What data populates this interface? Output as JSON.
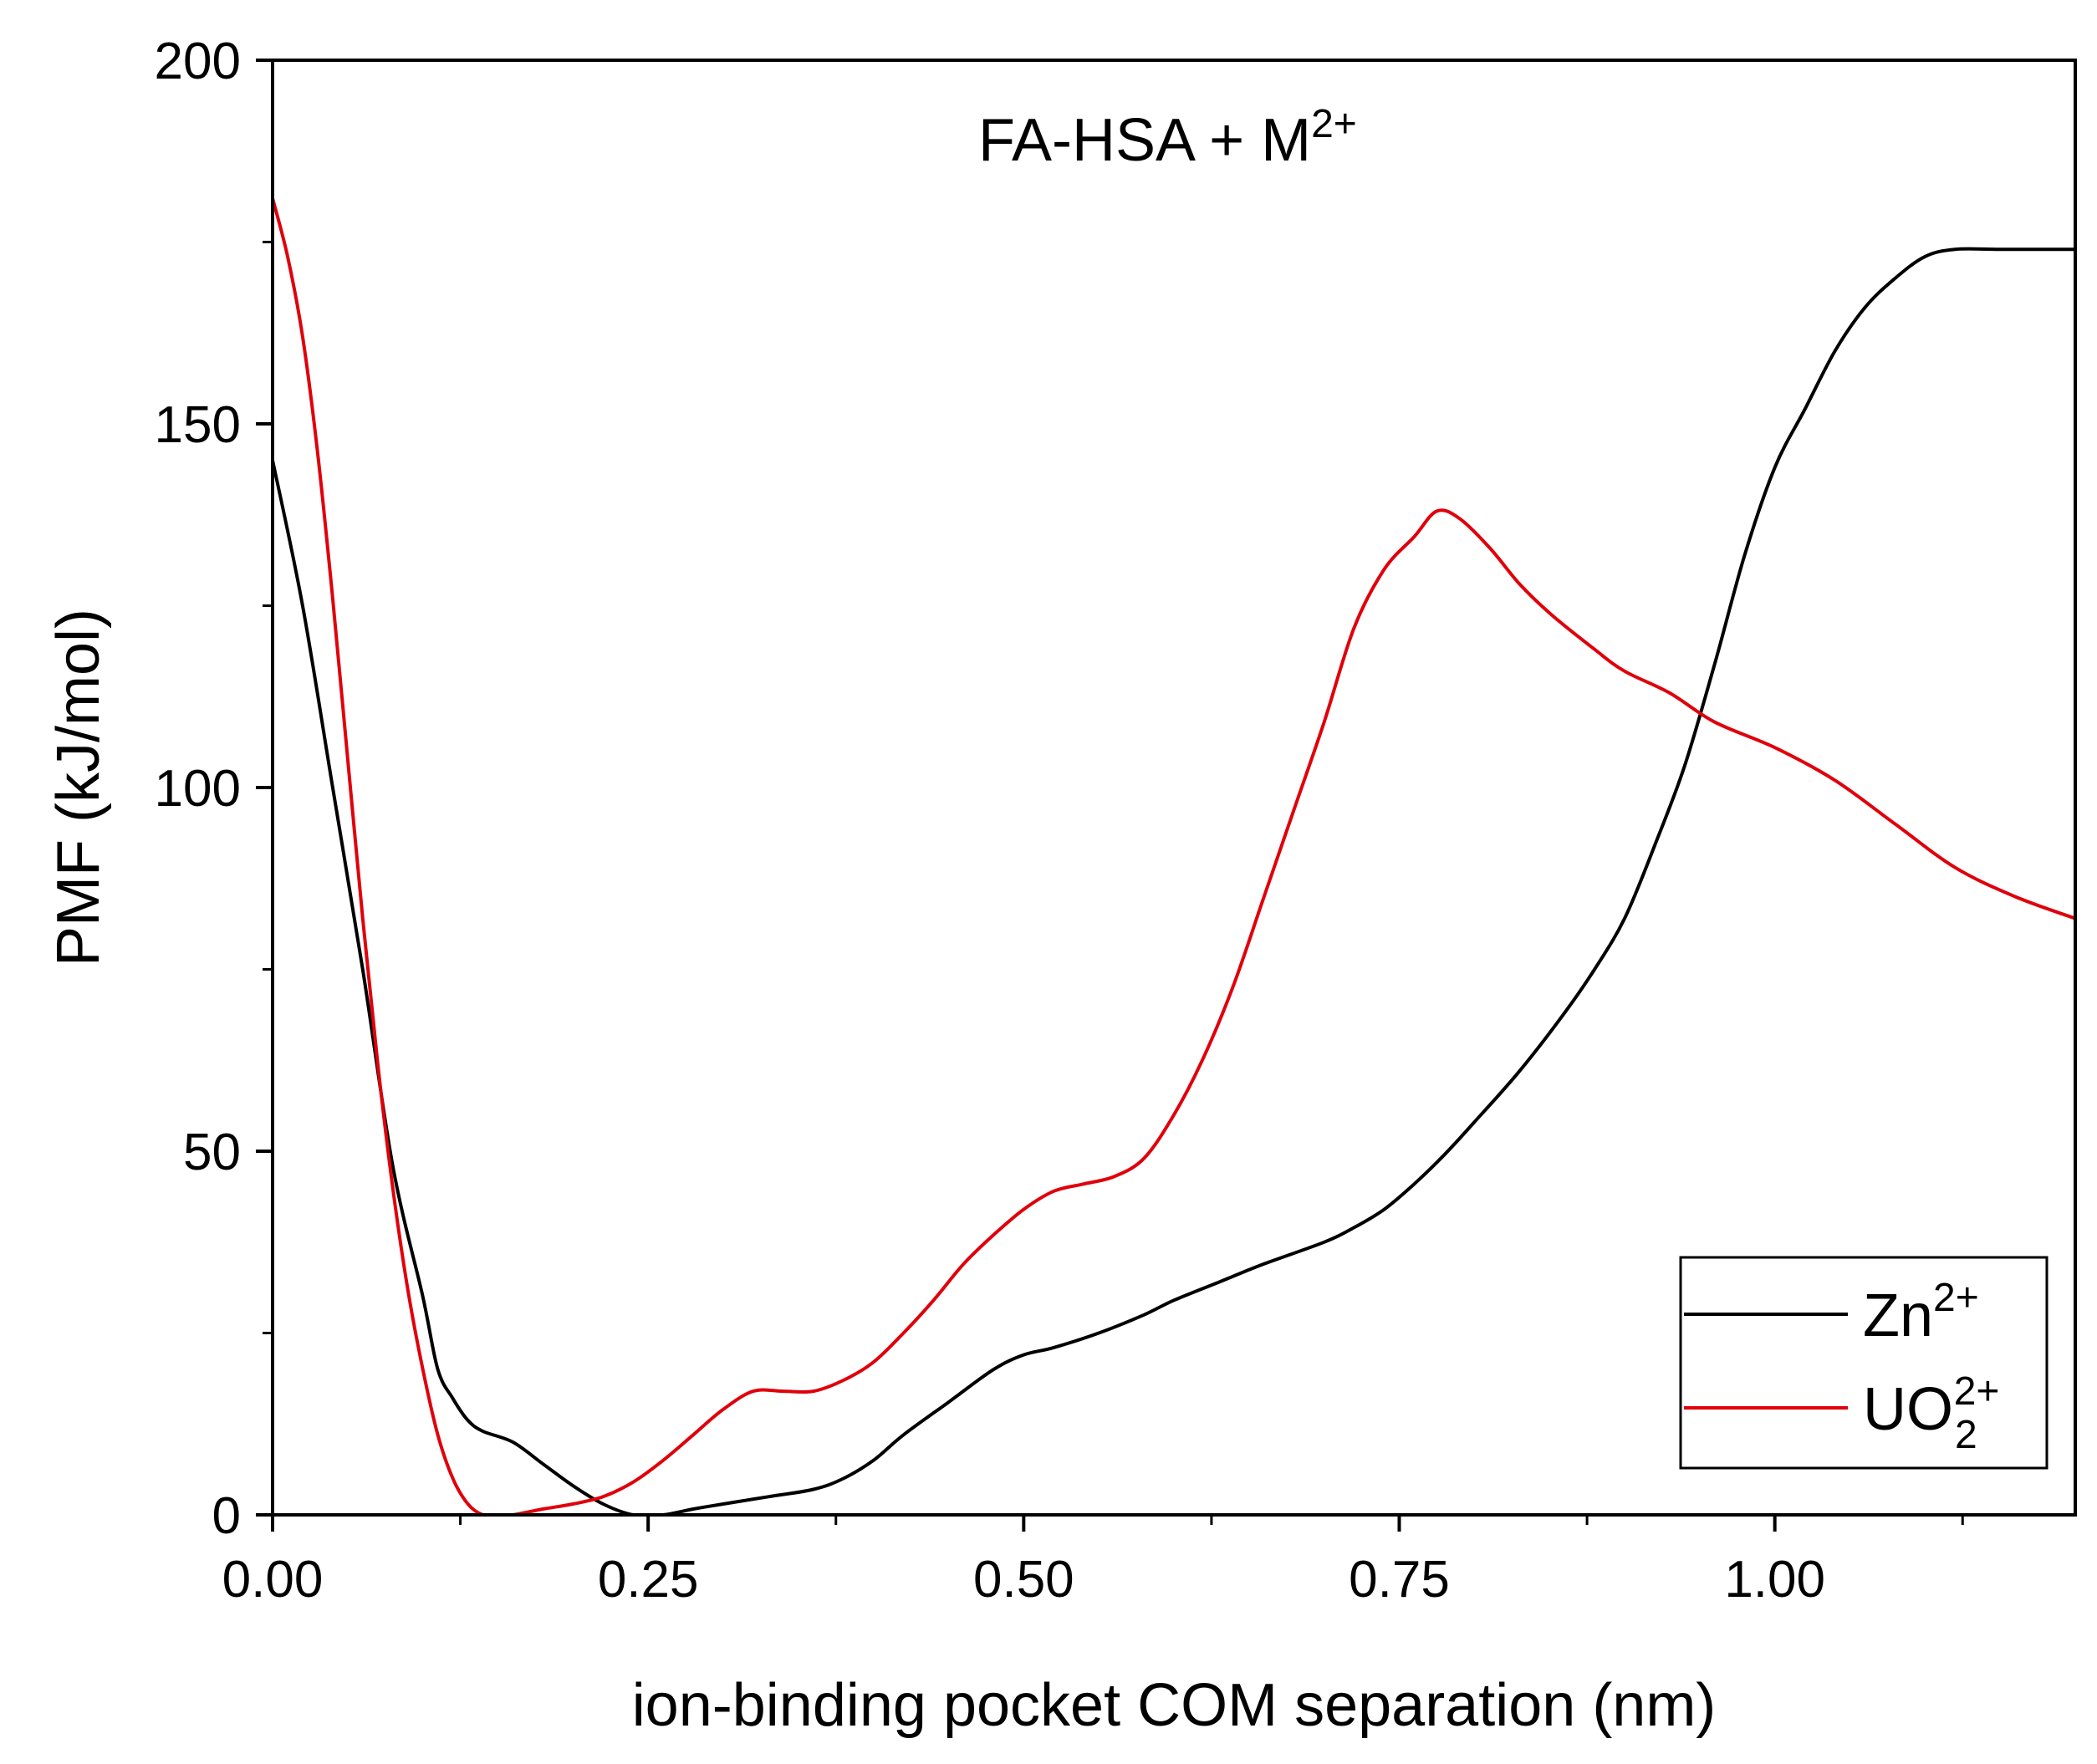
{
  "chart_data": {
    "type": "line",
    "title": "FA-HSA + M",
    "title_superscript": "2+",
    "xlabel": "ion-binding pocket COM separation (nm)",
    "ylabel": "PMF (kJ/mol)",
    "xlim": [
      0,
      1.2
    ],
    "ylim": [
      0,
      200
    ],
    "x_ticks": [
      {
        "value": 0,
        "label": "0.00"
      },
      {
        "value": 0.25,
        "label": "0.25"
      },
      {
        "value": 0.5,
        "label": "0.50"
      },
      {
        "value": 0.75,
        "label": "0.75"
      },
      {
        "value": 1.0,
        "label": "1.00"
      }
    ],
    "x_minor_ticks": [
      0.125,
      0.375,
      0.625,
      0.875,
      1.125
    ],
    "y_ticks": [
      {
        "value": 0,
        "label": "0"
      },
      {
        "value": 50,
        "label": "50"
      },
      {
        "value": 100,
        "label": "100"
      },
      {
        "value": 150,
        "label": "150"
      },
      {
        "value": 200,
        "label": "200"
      }
    ],
    "y_minor_ticks": [
      25,
      75,
      125,
      175
    ],
    "legend_position": "bottom-right",
    "series": [
      {
        "name": "Zn",
        "name_superscript": "2+",
        "name_subscript": "",
        "color": "#000000",
        "x": [
          0.0,
          0.02,
          0.04,
          0.06,
          0.08,
          0.1,
          0.11,
          0.12,
          0.13,
          0.14,
          0.16,
          0.18,
          0.2,
          0.22,
          0.24,
          0.26,
          0.28,
          0.3,
          0.33,
          0.36,
          0.38,
          0.4,
          0.42,
          0.45,
          0.48,
          0.5,
          0.52,
          0.55,
          0.58,
          0.6,
          0.63,
          0.66,
          0.7,
          0.72,
          0.74,
          0.76,
          0.78,
          0.8,
          0.83,
          0.86,
          0.88,
          0.9,
          0.92,
          0.94,
          0.96,
          0.98,
          1.0,
          1.02,
          1.04,
          1.06,
          1.08,
          1.1,
          1.12,
          1.15,
          1.2
        ],
        "y": [
          145,
          125,
          100,
          75,
          48,
          30,
          20,
          16,
          13,
          11.5,
          10,
          7,
          4,
          1.5,
          0,
          0,
          0.8,
          1.5,
          2.5,
          3.5,
          5,
          7.5,
          11,
          15.5,
          20,
          22,
          23,
          25,
          27.5,
          29.5,
          32,
          34.5,
          37.5,
          39.5,
          42,
          45.5,
          49.5,
          54,
          61,
          69,
          75,
          82,
          92,
          103,
          117,
          132,
          144,
          152,
          160,
          166,
          170,
          173,
          174,
          174,
          174
        ]
      },
      {
        "name": "UO",
        "name_superscript": "2+",
        "name_subscript": "2",
        "color": "#e0000b",
        "x": [
          0.0,
          0.01,
          0.02,
          0.03,
          0.04,
          0.05,
          0.06,
          0.07,
          0.08,
          0.09,
          0.1,
          0.11,
          0.12,
          0.13,
          0.14,
          0.15,
          0.16,
          0.18,
          0.2,
          0.22,
          0.24,
          0.26,
          0.28,
          0.3,
          0.32,
          0.34,
          0.36,
          0.38,
          0.4,
          0.42,
          0.44,
          0.46,
          0.48,
          0.5,
          0.52,
          0.54,
          0.56,
          0.58,
          0.6,
          0.62,
          0.64,
          0.66,
          0.68,
          0.7,
          0.72,
          0.74,
          0.76,
          0.775,
          0.79,
          0.81,
          0.83,
          0.85,
          0.88,
          0.9,
          0.93,
          0.96,
          1.0,
          1.04,
          1.08,
          1.12,
          1.16,
          1.2
        ],
        "y": [
          181,
          173,
          162,
          146,
          126,
          104,
          82,
          62,
          45,
          31,
          20,
          11,
          5,
          1.5,
          0,
          0,
          0,
          0.8,
          1.5,
          2.5,
          4.5,
          7.5,
          11,
          14.5,
          17,
          17,
          17,
          18.5,
          21,
          25,
          29.5,
          34.5,
          38.5,
          42,
          44.5,
          45.5,
          46.5,
          49,
          55,
          63,
          73,
          85,
          97,
          109,
          122,
          130,
          134.5,
          138,
          137,
          133,
          128,
          124,
          119,
          116,
          113,
          109,
          105.5,
          101,
          95,
          89,
          85,
          82
        ]
      }
    ]
  }
}
